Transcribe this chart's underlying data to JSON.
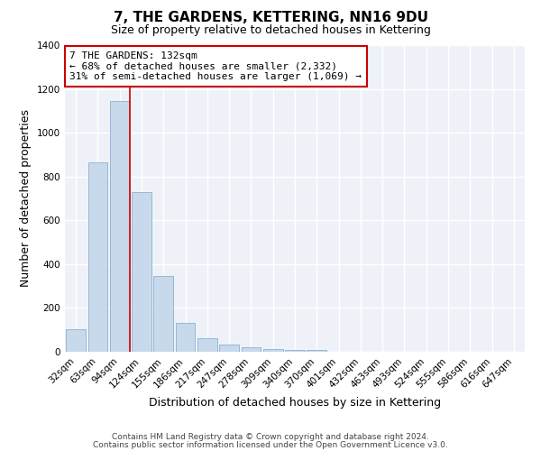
{
  "title": "7, THE GARDENS, KETTERING, NN16 9DU",
  "subtitle": "Size of property relative to detached houses in Kettering",
  "xlabel": "Distribution of detached houses by size in Kettering",
  "ylabel": "Number of detached properties",
  "bar_labels": [
    "32sqm",
    "63sqm",
    "94sqm",
    "124sqm",
    "155sqm",
    "186sqm",
    "217sqm",
    "247sqm",
    "278sqm",
    "309sqm",
    "340sqm",
    "370sqm",
    "401sqm",
    "432sqm",
    "463sqm",
    "493sqm",
    "524sqm",
    "555sqm",
    "586sqm",
    "616sqm",
    "647sqm"
  ],
  "bar_values": [
    105,
    865,
    1145,
    730,
    345,
    130,
    62,
    33,
    20,
    13,
    10,
    8,
    0,
    0,
    0,
    0,
    0,
    0,
    0,
    0,
    0
  ],
  "bar_color": "#c8d9ec",
  "bar_edge_color": "#8ab0d0",
  "ylim": [
    0,
    1400
  ],
  "yticks": [
    0,
    200,
    400,
    600,
    800,
    1000,
    1200,
    1400
  ],
  "property_line_after_bar_index": 2,
  "property_line_color": "#cc0000",
  "annotation_title": "7 THE GARDENS: 132sqm",
  "annotation_line1": "← 68% of detached houses are smaller (2,332)",
  "annotation_line2": "31% of semi-detached houses are larger (1,069) →",
  "annotation_box_color": "#ffffff",
  "annotation_box_edge_color": "#cc0000",
  "footnote1": "Contains HM Land Registry data © Crown copyright and database right 2024.",
  "footnote2": "Contains public sector information licensed under the Open Government Licence v3.0.",
  "background_color": "#ffffff",
  "plot_background_color": "#eef2f8",
  "grid_color": "#ffffff",
  "title_fontsize": 11,
  "subtitle_fontsize": 9,
  "axis_label_fontsize": 9,
  "tick_fontsize": 7.5,
  "annotation_fontsize": 8,
  "footnote_fontsize": 6.5
}
